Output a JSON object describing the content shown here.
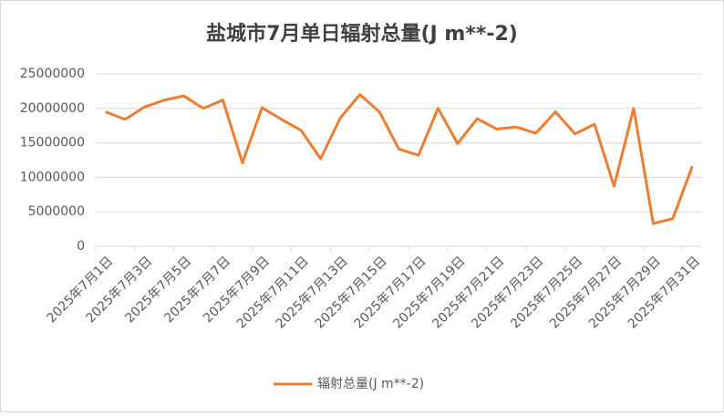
{
  "chart_data": {
    "type": "line",
    "title": "盐城市7月单日辐射总量(J m**-2)",
    "categories": [
      "2025年7月1日",
      null,
      "2025年7月3日",
      null,
      "2025年7月5日",
      null,
      "2025年7月7日",
      null,
      "2025年7月9日",
      null,
      "2025年7月11日",
      null,
      "2025年7月13日",
      null,
      "2025年7月15日",
      null,
      "2025年7月17日",
      null,
      "2025年7月19日",
      null,
      "2025年7月21日",
      null,
      "2025年7月23日",
      null,
      "2025年7月25日",
      null,
      "2025年7月27日",
      null,
      "2025年7月29日",
      null,
      "2025年7月31日"
    ],
    "series": [
      {
        "name": "辐射总量(J m**-2)",
        "color": "#ED7D31",
        "values": [
          19500000,
          18400000,
          20200000,
          21200000,
          21800000,
          20000000,
          21200000,
          12100000,
          20100000,
          18400000,
          16800000,
          12700000,
          18600000,
          22000000,
          19500000,
          14100000,
          13200000,
          20000000,
          14900000,
          18500000,
          17000000,
          17300000,
          16400000,
          19500000,
          16300000,
          17700000,
          8700000,
          20000000,
          3300000,
          4000000,
          11600000
        ]
      }
    ],
    "ylim": [
      0,
      25000000
    ],
    "yticks": [
      0,
      5000000,
      10000000,
      15000000,
      20000000,
      25000000
    ],
    "grid": true,
    "legend": "bottom"
  }
}
